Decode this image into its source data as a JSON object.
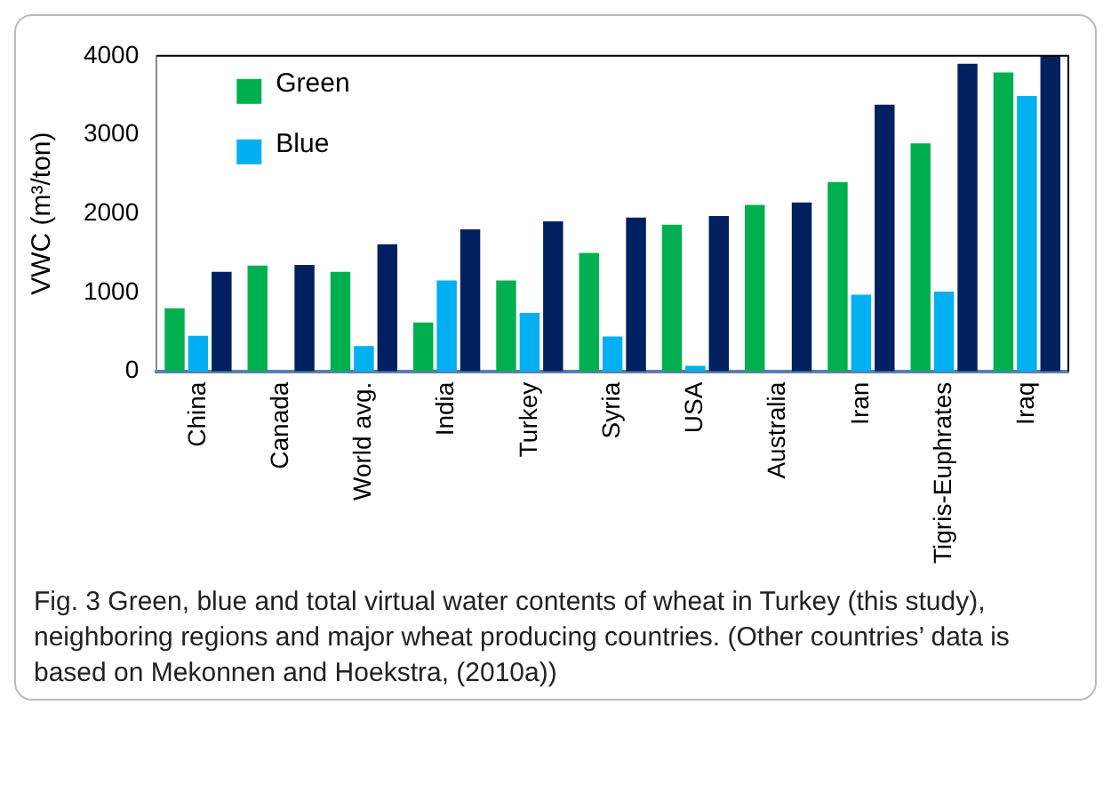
{
  "chart_data": {
    "type": "bar",
    "ylabel": "VWC (m³/ton)",
    "categories": [
      "China",
      "Canada",
      "World avg.",
      "India",
      "Turkey",
      "Syria",
      "USA",
      "Australia",
      "Iran",
      "Tigris-Euphrates",
      "Iraq"
    ],
    "series": [
      {
        "name": "Green",
        "color": "#00b050",
        "values": [
          800,
          1340,
          1260,
          620,
          1150,
          1500,
          1860,
          2110,
          2400,
          2890,
          3790
        ]
      },
      {
        "name": "Blue",
        "color": "#00b0f0",
        "values": [
          450,
          0,
          320,
          1150,
          740,
          440,
          70,
          0,
          970,
          1010,
          3490
        ]
      },
      {
        "color": "#002060",
        "values": [
          1260,
          1350,
          1610,
          1800,
          1900,
          1950,
          1970,
          2140,
          3380,
          3900,
          4000
        ]
      }
    ],
    "ylim": [
      0,
      4000
    ],
    "yticks": [
      0,
      1000,
      2000,
      3000,
      4000
    ],
    "grid": false,
    "legend": "top left",
    "annotations": [
      "Fig. 3 Green, blue and total virtual water contents of wheat in Turkey (this study), neighboring regions and major wheat producing countries. (Other countries’ data is based on Mekonnen and Hoekstra, (2010a))"
    ]
  }
}
